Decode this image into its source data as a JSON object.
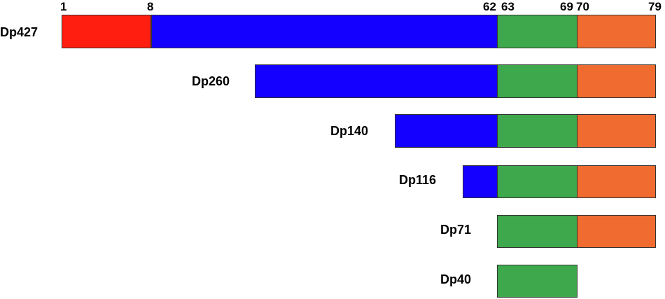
{
  "colors": {
    "red": "#ff1e10",
    "blue": "#1400ff",
    "green": "#3ea84c",
    "orange": "#ef6b30"
  },
  "exon_ticks": [
    "1",
    "8",
    "62",
    "63",
    "69",
    "70",
    "79"
  ],
  "isoforms": [
    {
      "name": "Dp427",
      "segments": [
        {
          "color": "red"
        },
        {
          "color": "blue"
        },
        {
          "color": "green"
        },
        {
          "color": "orange"
        }
      ]
    },
    {
      "name": "Dp260",
      "segments": [
        {
          "color": "blue"
        },
        {
          "color": "green"
        },
        {
          "color": "orange"
        }
      ]
    },
    {
      "name": "Dp140",
      "segments": [
        {
          "color": "blue"
        },
        {
          "color": "green"
        },
        {
          "color": "orange"
        }
      ]
    },
    {
      "name": "Dp116",
      "segments": [
        {
          "color": "blue"
        },
        {
          "color": "green"
        },
        {
          "color": "orange"
        }
      ]
    },
    {
      "name": "Dp71",
      "segments": [
        {
          "color": "green"
        },
        {
          "color": "orange"
        }
      ]
    },
    {
      "name": "Dp40",
      "segments": [
        {
          "color": "green"
        }
      ]
    }
  ]
}
